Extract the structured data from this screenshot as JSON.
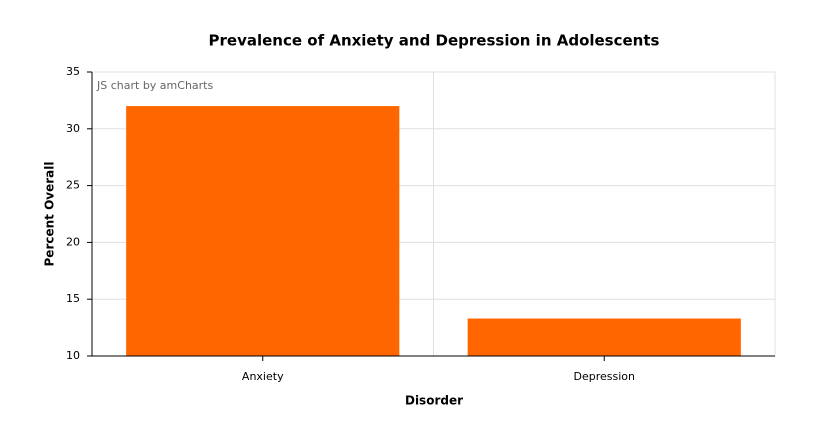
{
  "chart_data": {
    "type": "bar",
    "title": "Prevalence of Anxiety and Depression in Adolescents",
    "credit": "JS chart by amCharts",
    "x_label": "Disorder",
    "y_label": "Percent Overall",
    "categories": [
      "Anxiety",
      "Depression"
    ],
    "values": [
      32,
      13.3
    ],
    "color": "#ff6600",
    "ylim": [
      10,
      35
    ],
    "yticks": [
      10,
      15,
      20,
      25,
      30,
      35
    ],
    "grid": true
  }
}
